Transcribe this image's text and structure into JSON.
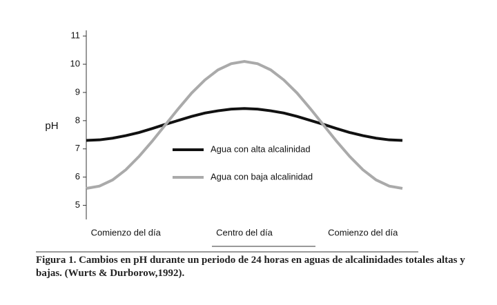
{
  "chart_data": {
    "type": "line",
    "y_label": "pH",
    "categories": [
      null,
      null,
      null,
      "Comienzo del día",
      null,
      null,
      null,
      null,
      null,
      null,
      null,
      null,
      "Centro del día",
      null,
      null,
      null,
      null,
      null,
      null,
      null,
      null,
      "Comienzo del día",
      null,
      null,
      null
    ],
    "series": [
      {
        "name": "Agua con alta alcalinidad",
        "color": "#111111",
        "values": [
          7.3,
          7.32,
          7.38,
          7.47,
          7.58,
          7.72,
          7.87,
          8.01,
          8.15,
          8.27,
          8.35,
          8.41,
          8.43,
          8.41,
          8.35,
          8.27,
          8.15,
          8.01,
          7.87,
          7.72,
          7.58,
          7.47,
          7.38,
          7.32,
          7.3
        ]
      },
      {
        "name": "Agua con baja alcalinidad",
        "color": "#aaaaaa",
        "values": [
          5.6,
          5.68,
          5.9,
          6.26,
          6.73,
          7.27,
          7.85,
          8.43,
          8.98,
          9.44,
          9.8,
          10.02,
          10.1,
          10.02,
          9.8,
          9.44,
          8.98,
          8.43,
          7.85,
          7.27,
          6.73,
          6.26,
          5.9,
          5.68,
          5.6
        ]
      }
    ],
    "ylim": [
      4.5,
      11.2
    ],
    "yticks": [
      5,
      6,
      7,
      8,
      9,
      10,
      11
    ],
    "grid": false,
    "caption": "Figura 1. Cambios en pH durante un periodo de 24 horas en aguas de alcalinidades totales altas y bajas. (Wurts & Durborow,1992)."
  }
}
